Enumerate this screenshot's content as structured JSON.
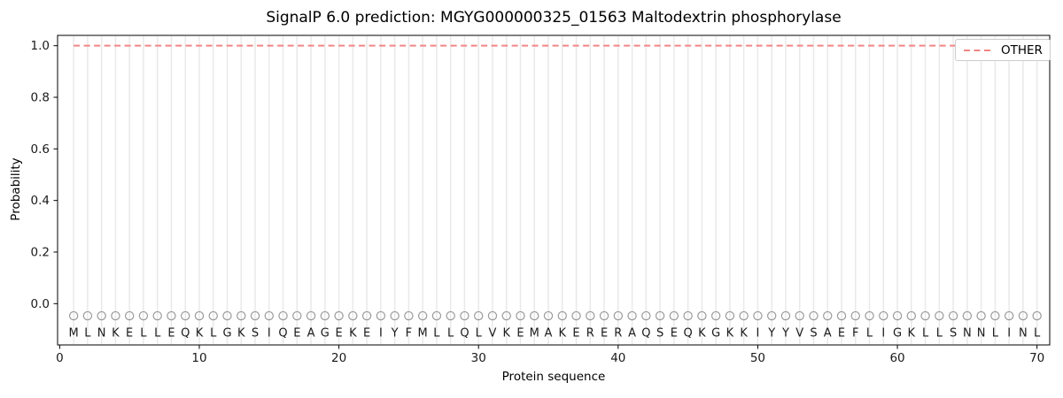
{
  "chart_data": {
    "type": "line",
    "title": "SignalP 6.0 prediction: MGYG000000325_01563 Maltodextrin phosphorylase",
    "xlabel": "Protein sequence",
    "ylabel": "Probability",
    "xlim": [
      -0.15,
      70.91
    ],
    "ylim": [
      -0.16,
      1.04
    ],
    "x_ticks": [
      0,
      10,
      20,
      30,
      40,
      50,
      60,
      70
    ],
    "y_ticks": [
      0.0,
      0.2,
      0.4,
      0.6,
      0.8,
      1.0
    ],
    "grid": "vertical-line-per-residue",
    "legend": {
      "position": "upper-right",
      "entries": [
        {
          "label": "OTHER",
          "color": "#f28585",
          "style": "dashed"
        }
      ]
    },
    "sequence": "MLNKELLEQKLGKSIQEAGEKEIYFMLLQLVKEMAKERERAQSEQKGKKIYYVSAEFLIGKLLSNNLINL",
    "series": [
      {
        "name": "OTHER",
        "style": "dashed",
        "color": "#f28585",
        "x_start": 1,
        "values": [
          1.0,
          1.0,
          1.0,
          1.0,
          1.0,
          1.0,
          1.0,
          1.0,
          1.0,
          1.0,
          1.0,
          1.0,
          1.0,
          1.0,
          1.0,
          1.0,
          1.0,
          1.0,
          1.0,
          1.0,
          1.0,
          1.0,
          1.0,
          1.0,
          1.0,
          1.0,
          1.0,
          1.0,
          1.0,
          1.0,
          1.0,
          1.0,
          1.0,
          1.0,
          1.0,
          1.0,
          1.0,
          1.0,
          1.0,
          1.0,
          1.0,
          1.0,
          1.0,
          1.0,
          1.0,
          1.0,
          1.0,
          1.0,
          1.0,
          1.0,
          1.0,
          1.0,
          1.0,
          1.0,
          1.0,
          1.0,
          1.0,
          1.0,
          1.0,
          1.0,
          1.0,
          1.0,
          1.0,
          1.0,
          1.0,
          1.0,
          1.0,
          1.0,
          1.0,
          1.0
        ]
      }
    ],
    "residue_markers": {
      "symbol": "circle-outline",
      "y": -0.047,
      "color": "#9a9a9a"
    },
    "residue_label_y": -0.112,
    "colors": {
      "grid": "#e9e9e9",
      "spine": "#000000",
      "tick_label": "#1a1a1a",
      "sequence_letter": "#1a1a1a",
      "background": "#ffffff"
    }
  }
}
